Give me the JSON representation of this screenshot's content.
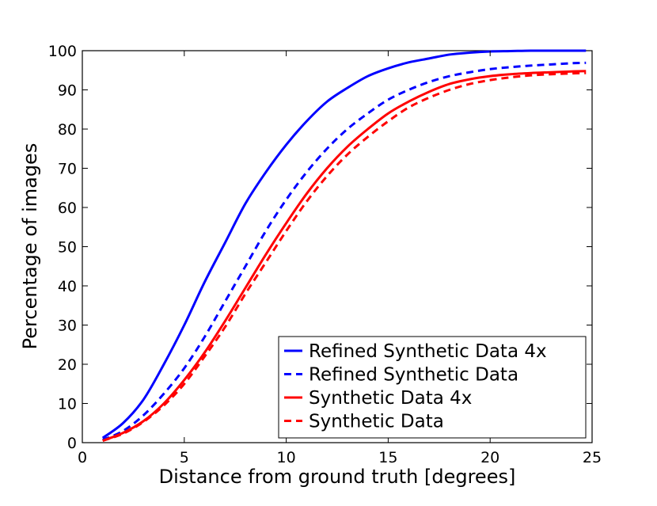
{
  "chart_data": {
    "type": "line",
    "title": "",
    "xlabel": "Distance from ground truth [degrees]",
    "ylabel": "Percentage of images",
    "xlim": [
      0,
      25
    ],
    "ylim": [
      0,
      100
    ],
    "xticks": [
      0,
      5,
      10,
      15,
      20,
      25
    ],
    "yticks": [
      0,
      10,
      20,
      30,
      40,
      50,
      60,
      70,
      80,
      90,
      100
    ],
    "grid": false,
    "legend_position": "lower-right",
    "x": [
      1,
      2,
      3,
      4,
      5,
      6,
      7,
      8,
      9,
      10,
      11,
      12,
      13,
      14,
      15,
      16,
      17,
      18,
      19,
      20,
      21,
      22,
      23,
      24,
      24.7
    ],
    "series": [
      {
        "name": "Refined Synthetic Data 4x",
        "color": "#0000ff",
        "dash": "solid",
        "values": [
          1.2,
          5,
          11,
          20,
          30,
          41,
          51,
          61,
          69,
          76,
          82,
          87,
          90.5,
          93.5,
          95.5,
          97,
          98,
          99,
          99.5,
          99.8,
          99.9,
          100,
          100,
          100,
          100
        ]
      },
      {
        "name": "Refined Synthetic Data",
        "color": "#0000ff",
        "dash": "dashed",
        "values": [
          0.7,
          3,
          7,
          12.5,
          19,
          27,
          36,
          45,
          54,
          62,
          69,
          75,
          80,
          84,
          87.5,
          90,
          92,
          93.5,
          94.5,
          95.3,
          95.8,
          96.2,
          96.5,
          96.8,
          96.9
        ]
      },
      {
        "name": "Synthetic Data 4x",
        "color": "#ff0000",
        "dash": "solid",
        "values": [
          0.5,
          2.5,
          5.5,
          10,
          16,
          23,
          31,
          39.5,
          48,
          56,
          63.5,
          70,
          75.5,
          80,
          84,
          87,
          89.5,
          91.5,
          92.7,
          93.5,
          94,
          94.3,
          94.5,
          94.7,
          94.8
        ]
      },
      {
        "name": "Synthetic Data",
        "color": "#ff0000",
        "dash": "dashed",
        "values": [
          0.5,
          2.3,
          5.3,
          9.5,
          15,
          22,
          29.5,
          38,
          46,
          54,
          61.5,
          68,
          73.5,
          78,
          82,
          85.5,
          88,
          90,
          91.5,
          92.5,
          93.2,
          93.7,
          94,
          94.2,
          94.3
        ]
      }
    ]
  }
}
